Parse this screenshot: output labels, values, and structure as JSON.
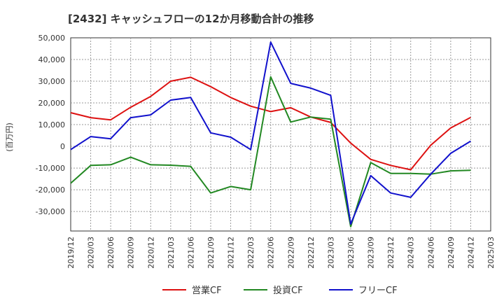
{
  "chart_data": {
    "type": "line",
    "title": "[2432]  キャッシュフローの12か月移動合計の推移",
    "ylabel": "(百万円)",
    "xlabel": "",
    "ylim": [
      -39000,
      50000
    ],
    "yticks": [
      50000,
      40000,
      30000,
      20000,
      10000,
      0,
      -10000,
      -20000,
      -30000
    ],
    "ytick_labels": [
      "50,000",
      "40,000",
      "30,000",
      "20,000",
      "10,000",
      "0",
      "-10,000",
      "-20,000",
      "-30,000"
    ],
    "categories": [
      "2019/12",
      "2020/03",
      "2020/06",
      "2020/09",
      "2020/12",
      "2021/03",
      "2021/06",
      "2021/09",
      "2021/12",
      "2022/03",
      "2022/06",
      "2022/09",
      "2022/12",
      "2023/03",
      "2023/06",
      "2023/09",
      "2023/12",
      "2024/03",
      "2024/06",
      "2024/09",
      "2024/12",
      "2025/03"
    ],
    "grid": true,
    "legend_position": "bottom",
    "series": [
      {
        "name": "営業CF",
        "color": "#dd1111",
        "values": [
          15500,
          13200,
          12200,
          18000,
          23000,
          30000,
          31800,
          27500,
          22500,
          18500,
          16000,
          17800,
          13500,
          11000,
          1500,
          -6000,
          -8800,
          -10800,
          500,
          8500,
          13300,
          null
        ]
      },
      {
        "name": "投資CF",
        "color": "#228822",
        "values": [
          -17000,
          -8800,
          -8500,
          -5000,
          -8500,
          -8700,
          -9200,
          -21500,
          -18500,
          -20000,
          32000,
          11200,
          13500,
          12500,
          -37000,
          -7500,
          -12500,
          -12500,
          -12800,
          -11300,
          -11000,
          null
        ]
      },
      {
        "name": "フリーCF",
        "color": "#1111cc",
        "values": [
          -1500,
          4500,
          3500,
          13200,
          14500,
          21300,
          22500,
          6200,
          4200,
          -1500,
          48000,
          29000,
          26800,
          23500,
          -35800,
          -13500,
          -21500,
          -23500,
          -12800,
          -3200,
          2400,
          null
        ]
      }
    ]
  }
}
